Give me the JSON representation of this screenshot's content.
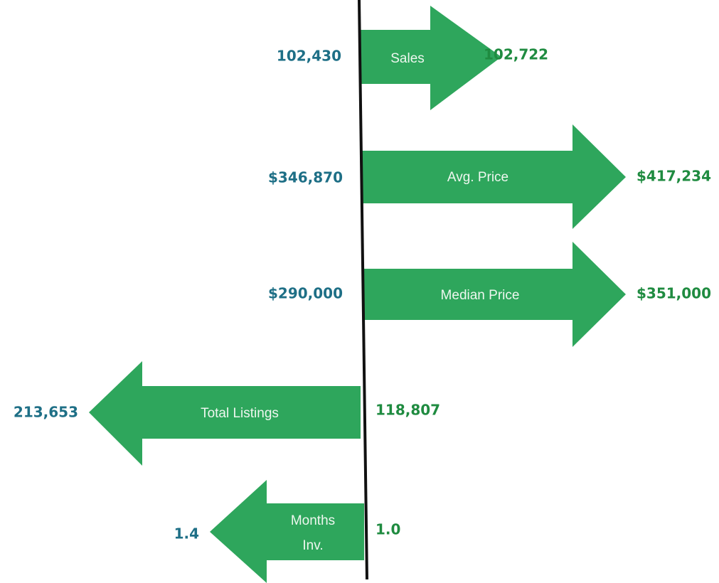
{
  "items": [
    {
      "label": "Sales",
      "before": "102,430",
      "after": "102,722"
    },
    {
      "label": "Avg. Price",
      "before": "$346,870",
      "after": "$417,234"
    },
    {
      "label": "Median Price",
      "before": "$290,000",
      "after": "$351,000"
    },
    {
      "label": "Total Listings",
      "before": "213,653",
      "after": "118,807"
    },
    {
      "label": [
        "Months",
        "Inv."
      ],
      "before": "1.4",
      "after": "1.0"
    }
  ]
}
